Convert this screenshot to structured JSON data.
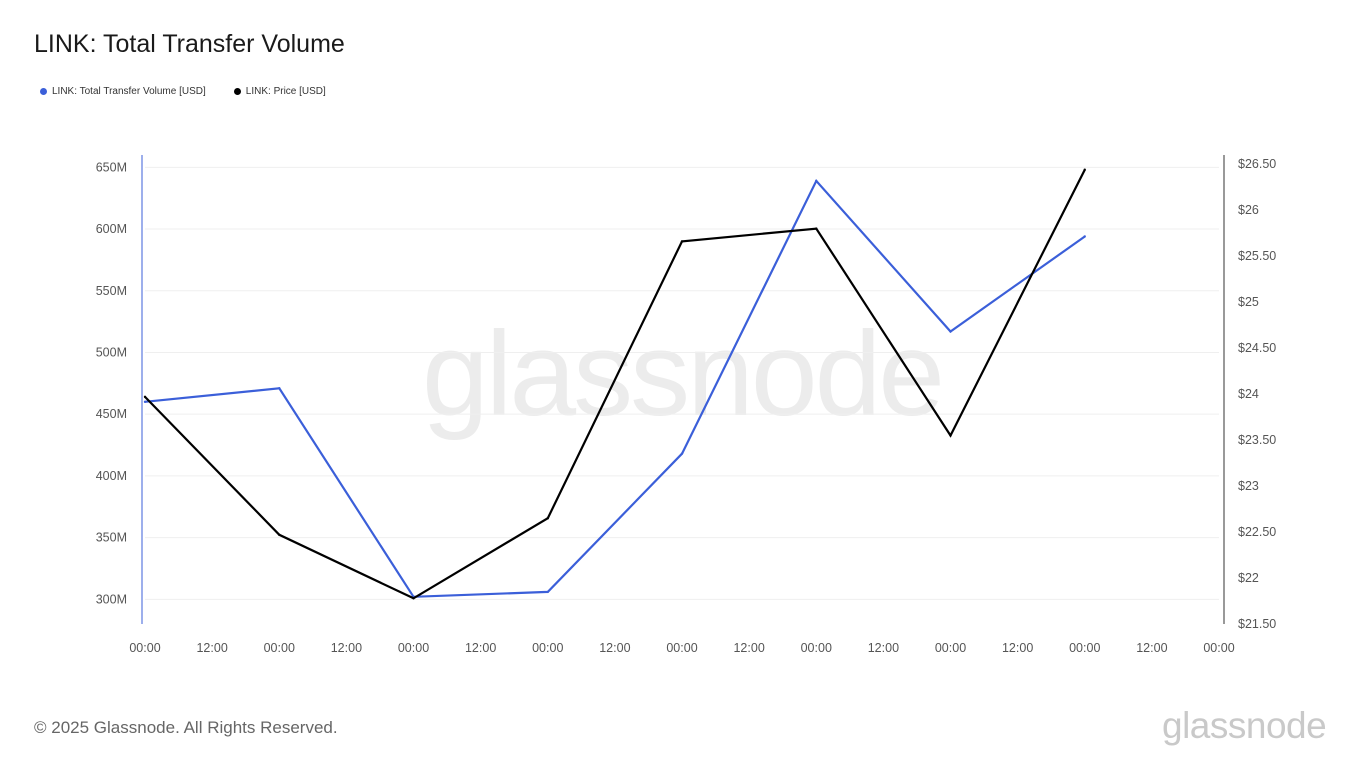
{
  "title": "LINK: Total Transfer Volume",
  "copyright": "© 2025 Glassnode. All Rights Reserved.",
  "brand": "glassnode",
  "watermark": "glassnode",
  "colors": {
    "volume": "#3b5fd9",
    "price": "#000000",
    "grid": "#efefef",
    "tick": "#555555",
    "watermark": "#ececec"
  },
  "legend": [
    {
      "label": "LINK: Total Transfer Volume [USD]",
      "color": "#3b5fd9"
    },
    {
      "label": "LINK: Price [USD]",
      "color": "#000000"
    }
  ],
  "chart_data": {
    "type": "line",
    "x_ticks": [
      "00:00",
      "12:00",
      "00:00",
      "12:00",
      "00:00",
      "12:00",
      "00:00",
      "12:00",
      "00:00",
      "12:00",
      "00:00",
      "12:00",
      "00:00",
      "12:00",
      "00:00",
      "12:00",
      "00:00"
    ],
    "y_left": {
      "ticks": [
        300,
        350,
        400,
        450,
        500,
        550,
        600,
        650
      ],
      "tick_labels": [
        "300M",
        "350M",
        "400M",
        "450M",
        "500M",
        "550M",
        "600M",
        "650M"
      ],
      "range": [
        280,
        660
      ]
    },
    "y_right": {
      "ticks": [
        21.5,
        22,
        22.5,
        23,
        23.5,
        24,
        24.5,
        25,
        25.5,
        26,
        26.5
      ],
      "tick_labels": [
        "$21.50",
        "$22",
        "$22.50",
        "$23",
        "$23.50",
        "$24",
        "$24.50",
        "$25",
        "$25.50",
        "$26",
        "$26.50"
      ],
      "range": [
        21.5,
        26.6
      ]
    },
    "x_range": [
      0,
      16
    ],
    "grid": true,
    "legend_position": "top-left",
    "series": [
      {
        "name": "LINK: Total Transfer Volume [USD]",
        "axis": "left",
        "unit": "M USD",
        "x": [
          0,
          2,
          4,
          6,
          8,
          10,
          12,
          14
        ],
        "values": [
          460,
          471,
          302,
          306,
          418,
          639,
          517,
          594
        ]
      },
      {
        "name": "LINK: Price [USD]",
        "axis": "right",
        "unit": "USD",
        "x": [
          0,
          2,
          4,
          6,
          8,
          10,
          12,
          14
        ],
        "values": [
          23.97,
          22.47,
          21.78,
          22.65,
          25.66,
          25.8,
          23.55,
          26.44
        ]
      }
    ]
  }
}
